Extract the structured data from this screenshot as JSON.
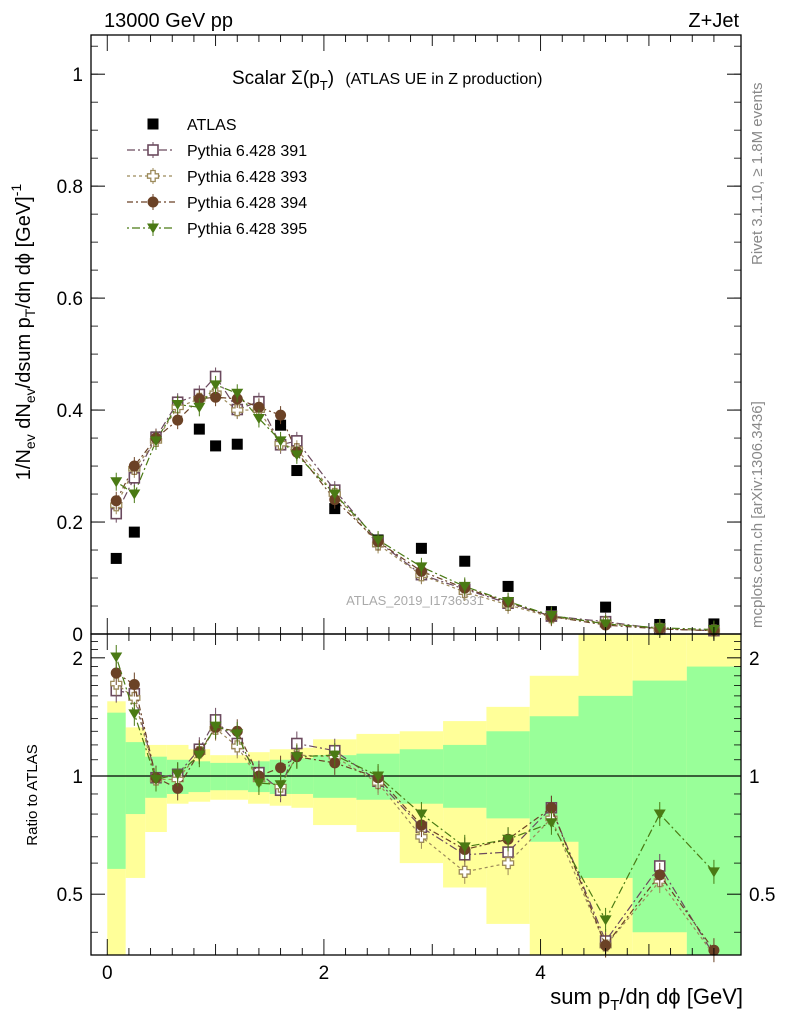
{
  "header": {
    "left": "13000 GeV pp",
    "right": "Z+Jet"
  },
  "side_labels": {
    "top": "Rivet 3.1.10, ≥ 1.8M events",
    "bottom": "mcplots.cern.ch [arXiv:1306.3436]"
  },
  "watermark": "ATLAS_2019_I1736531",
  "colors": {
    "atlas": "#000000",
    "p391": "#6b4a5e",
    "p393": "#9c8a5a",
    "p394": "#6b4226",
    "p395": "#4a7a14",
    "band_inner": "#99ff99",
    "band_outer": "#ffff99"
  },
  "chart_data": [
    {
      "type": "scatter",
      "title_parts": {
        "main": "Scalar Σ(p",
        "sub": "T",
        "close": ")",
        "extra": "(ATLAS UE in Z production)"
      },
      "ylabel": "1/N_ev dN_ev/dsum p_T/dη dϕ [GeV]^-1",
      "xlim": [
        -0.15,
        5.85
      ],
      "ylim": [
        0,
        1.07
      ],
      "yticks": [
        0,
        0.2,
        0.4,
        0.6,
        0.8,
        1
      ],
      "ytick_labels": [
        "0",
        "0.2",
        "0.4",
        "0.6",
        "0.8",
        "1"
      ],
      "x": [
        0.083,
        0.25,
        0.45,
        0.65,
        0.85,
        1.0,
        1.2,
        1.4,
        1.6,
        1.75,
        2.1,
        2.5,
        2.9,
        3.3,
        3.7,
        4.1,
        4.6,
        5.1,
        5.6
      ],
      "series": [
        {
          "name": "ATLAS",
          "marker": "filled-square",
          "y": [
            0.135,
            0.182,
            0.352,
            0.412,
            0.366,
            0.336,
            0.339,
            0.405,
            0.373,
            0.292,
            0.224,
            0.168,
            0.153,
            0.13,
            0.085,
            0.04,
            0.048,
            0.017,
            0.018
          ]
        },
        {
          "name": "Pythia 6.428 391",
          "marker": "open-square",
          "y": [
            0.215,
            0.279,
            0.351,
            0.414,
            0.428,
            0.46,
            0.401,
            0.415,
            0.338,
            0.345,
            0.257,
            0.165,
            0.106,
            0.08,
            0.055,
            0.032,
            0.022,
            0.009,
            0.006
          ]
        },
        {
          "name": "Pythia 6.428 393",
          "marker": "open-cross",
          "y": [
            0.23,
            0.295,
            0.345,
            0.405,
            0.42,
            0.43,
            0.4,
            0.4,
            0.34,
            0.33,
            0.25,
            0.16,
            0.105,
            0.075,
            0.052,
            0.03,
            0.02,
            0.009,
            0.006
          ]
        },
        {
          "name": "Pythia 6.428 394",
          "marker": "filled-circle",
          "y": [
            0.238,
            0.3,
            0.35,
            0.382,
            0.42,
            0.423,
            0.42,
            0.405,
            0.391,
            0.325,
            0.24,
            0.165,
            0.112,
            0.082,
            0.057,
            0.031,
            0.016,
            0.009,
            0.006
          ]
        },
        {
          "name": "Pythia 6.428 395",
          "marker": "filled-triangle-down",
          "y": [
            0.272,
            0.25,
            0.345,
            0.41,
            0.405,
            0.445,
            0.43,
            0.385,
            0.345,
            0.32,
            0.25,
            0.168,
            0.12,
            0.085,
            0.058,
            0.033,
            0.018,
            0.011,
            0.008
          ]
        }
      ],
      "legend_position": "top-left"
    },
    {
      "type": "scatter",
      "ylabel": "Ratio to ATLAS",
      "xlabel": "sum p_T/dη dϕ [GeV]",
      "xlim": [
        -0.15,
        5.85
      ],
      "ylim": [
        0.35,
        2.3
      ],
      "yticks": [
        0.5,
        1,
        2
      ],
      "ytick_labels": [
        "0.5",
        "1",
        "2"
      ],
      "xticks": [
        0,
        2,
        4
      ],
      "xtick_labels": [
        "0",
        "2",
        "4"
      ],
      "reference_line": 1,
      "band_edges": [
        0,
        0.17,
        0.35,
        0.55,
        0.75,
        0.95,
        1.1,
        1.3,
        1.5,
        1.7,
        1.9,
        2.3,
        2.7,
        3.1,
        3.5,
        3.9,
        4.35,
        4.85,
        5.35,
        5.85
      ],
      "band_inner": [
        [
          0.58,
          1.45
        ],
        [
          0.8,
          1.22
        ],
        [
          0.88,
          1.12
        ],
        [
          0.9,
          1.1
        ],
        [
          0.91,
          1.09
        ],
        [
          0.92,
          1.08
        ],
        [
          0.92,
          1.08
        ],
        [
          0.91,
          1.09
        ],
        [
          0.9,
          1.1
        ],
        [
          0.9,
          1.11
        ],
        [
          0.88,
          1.13
        ],
        [
          0.87,
          1.14
        ],
        [
          0.85,
          1.17
        ],
        [
          0.83,
          1.2
        ],
        [
          0.78,
          1.3
        ],
        [
          0.68,
          1.42
        ],
        [
          0.55,
          1.6
        ],
        [
          0.4,
          1.75
        ],
        [
          0.3,
          1.9
        ]
      ],
      "band_outer": [
        [
          0.35,
          1.55
        ],
        [
          0.55,
          1.33
        ],
        [
          0.72,
          1.2
        ],
        [
          0.85,
          1.2
        ],
        [
          0.86,
          1.17
        ],
        [
          0.87,
          1.13
        ],
        [
          0.87,
          1.13
        ],
        [
          0.85,
          1.15
        ],
        [
          0.84,
          1.17
        ],
        [
          0.83,
          1.18
        ],
        [
          0.75,
          1.24
        ],
        [
          0.72,
          1.28
        ],
        [
          0.6,
          1.3
        ],
        [
          0.52,
          1.38
        ],
        [
          0.42,
          1.5
        ],
        [
          0.3,
          1.8
        ],
        [
          0.2,
          2.3
        ],
        [
          0.2,
          2.3
        ],
        [
          0.2,
          2.3
        ]
      ],
      "series": [
        {
          "name": "Pythia 6.428 391",
          "marker": "open-square",
          "y": [
            1.65,
            1.62,
            0.99,
            1.01,
            1.17,
            1.39,
            1.21,
            1.02,
            0.92,
            1.21,
            1.16,
            0.97,
            0.74,
            0.63,
            0.64,
            0.83,
            0.38,
            0.59,
            0.3
          ]
        },
        {
          "name": "Pythia 6.428 393",
          "marker": "open-cross",
          "y": [
            1.72,
            1.58,
            0.98,
            0.98,
            1.15,
            1.32,
            1.19,
            0.98,
            0.94,
            1.13,
            1.12,
            0.96,
            0.7,
            0.57,
            0.6,
            0.78,
            0.37,
            0.54,
            0.3
          ]
        },
        {
          "name": "Pythia 6.428 394",
          "marker": "filled-circle",
          "y": [
            1.83,
            1.71,
            0.99,
            0.93,
            1.15,
            1.33,
            1.3,
            1.0,
            1.05,
            1.12,
            1.08,
            0.99,
            0.75,
            0.65,
            0.69,
            0.83,
            0.37,
            0.56,
            0.36
          ]
        },
        {
          "name": "Pythia 6.428 395",
          "marker": "filled-triangle-down",
          "y": [
            2.01,
            1.44,
            0.98,
            1.01,
            1.13,
            1.34,
            1.28,
            0.96,
            0.95,
            1.12,
            1.13,
            1.0,
            0.8,
            0.66,
            0.69,
            0.76,
            0.43,
            0.8,
            0.57
          ]
        }
      ]
    }
  ]
}
